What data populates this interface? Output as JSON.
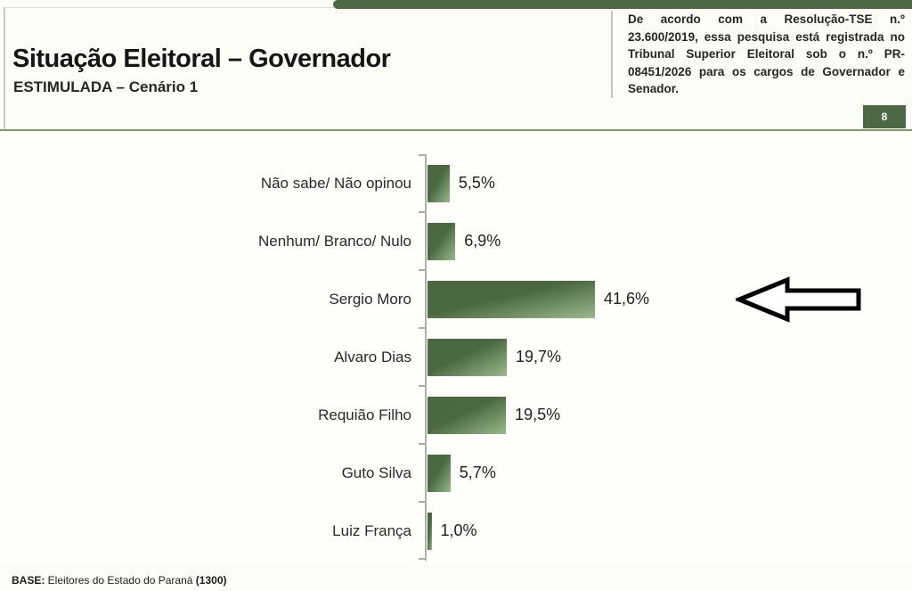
{
  "header": {
    "title": "Situação Eleitoral – Governador",
    "subtitle": "ESTIMULADA – Cenário 1",
    "regulatory_note": "De acordo com a Resolução-TSE n.º 23.600/2019, essa pesquisa está registrada no Tribunal Superior Eleitoral sob o n.º PR-08451/2026 para os cargos de Governador e Senador.",
    "page_number": "8",
    "accent_color": "#4c6943",
    "divider_color": "#7e9b67"
  },
  "chart_data": {
    "type": "bar",
    "orientation": "horizontal",
    "title": "Situação Eleitoral – Governador — ESTIMULADA – Cenário 1",
    "categories": [
      "Não sabe/ Não opinou",
      "Nenhum/ Branco/ Nulo",
      "Sergio Moro",
      "Alvaro Dias",
      "Requião Filho",
      "Guto Silva",
      "Luiz França"
    ],
    "values": [
      5.5,
      6.9,
      41.6,
      19.7,
      19.5,
      5.7,
      1.0
    ],
    "value_labels": [
      "5,5%",
      "6,9%",
      "41,6%",
      "19,7%",
      "19,5%",
      "5,7%",
      "1,0%"
    ],
    "xlabel": "",
    "ylabel": "",
    "xlim": [
      0,
      45
    ],
    "grid": false,
    "legend": false,
    "bar_color_dark": "#4a6941",
    "bar_color_light": "#9bb98e",
    "annotation": {
      "target_category": "Sergio Moro",
      "marker": "left-pointing-block-arrow"
    }
  },
  "footer": {
    "base_label": "BASE:",
    "base_text": " Eleitores do Estado do Paraná ",
    "base_count": "(1300)"
  }
}
